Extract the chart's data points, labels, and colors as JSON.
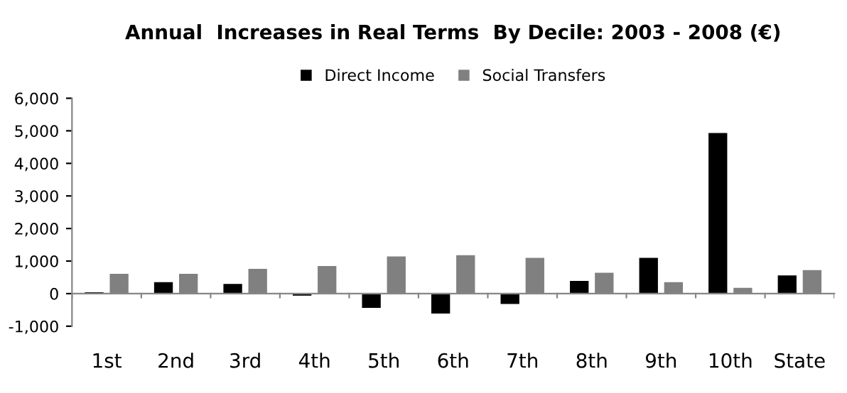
{
  "chart_data": {
    "type": "bar",
    "title": "Annual  Increases in Real Terms  By Decile: 2003 - 2008 (€)",
    "categories": [
      "1st",
      "2nd",
      "3rd",
      "4th",
      "5th",
      "6th",
      "7th",
      "8th",
      "9th",
      "10th",
      "State"
    ],
    "series": [
      {
        "name": "Direct Income",
        "color": "#000000",
        "values": [
          40,
          350,
          300,
          -60,
          -440,
          -610,
          -320,
          390,
          1100,
          4930,
          560
        ]
      },
      {
        "name": "Social Transfers",
        "color": "#808080",
        "values": [
          610,
          610,
          760,
          850,
          1140,
          1180,
          1100,
          640,
          350,
          180,
          720
        ]
      }
    ],
    "ylim": [
      -1000,
      6000
    ],
    "yticks": [
      {
        "value": -1000,
        "label": "-1,000"
      },
      {
        "value": 0,
        "label": "0"
      },
      {
        "value": 1000,
        "label": "1,000"
      },
      {
        "value": 2000,
        "label": "2,000"
      },
      {
        "value": 3000,
        "label": "3,000"
      },
      {
        "value": 4000,
        "label": "4,000"
      },
      {
        "value": 5000,
        "label": "5,000"
      },
      {
        "value": 6000,
        "label": "6,000"
      }
    ],
    "legend": "top"
  }
}
